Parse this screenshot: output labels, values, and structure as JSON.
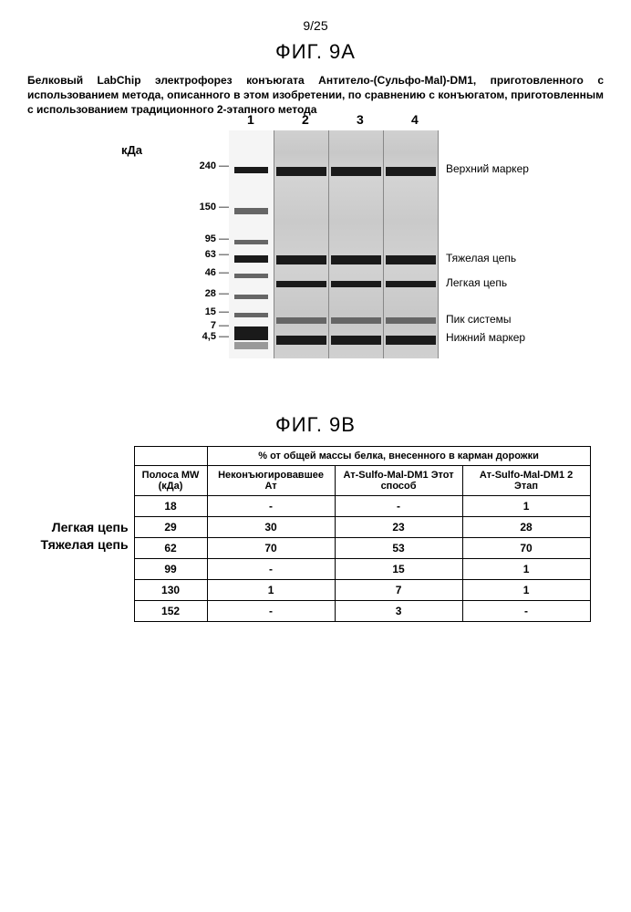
{
  "page_number": "9/25",
  "figA": {
    "title": "ФИГ. 9А",
    "caption": "Белковый LabChip электрофорез конъюгата Антитело-(Сульфо-Mal)-DM1, приготовленного с использованием метода, описанного в этом изобретении, по сравнению с конъюгатом, приготовленным с использованием традиционного 2-этапного метода",
    "kda_label": "кДа",
    "lane_numbers": [
      "1",
      "2",
      "3",
      "4"
    ],
    "mw_ticks": [
      {
        "label": "240",
        "top_pct": 16
      },
      {
        "label": "150",
        "top_pct": 34
      },
      {
        "label": "95",
        "top_pct": 48
      },
      {
        "label": "63",
        "top_pct": 55
      },
      {
        "label": "46",
        "top_pct": 63
      },
      {
        "label": "28",
        "top_pct": 72
      },
      {
        "label": "15",
        "top_pct": 80
      },
      {
        "label": "7",
        "top_pct": 86
      },
      {
        "label": "4,5",
        "top_pct": 91
      }
    ],
    "right_labels": [
      {
        "text": "Верхний маркер",
        "top_pct": 17
      },
      {
        "text": "Тяжелая цепь",
        "top_pct": 56
      },
      {
        "text": "Легкая цепь",
        "top_pct": 67
      },
      {
        "text": "Пик системы",
        "top_pct": 83
      },
      {
        "text": "Нижний маркер",
        "top_pct": 91
      }
    ],
    "lane1_bands": [
      {
        "top_pct": 16,
        "h": 3,
        "cls": ""
      },
      {
        "top_pct": 34,
        "h": 3,
        "cls": "faint"
      },
      {
        "top_pct": 48,
        "h": 2,
        "cls": "faint"
      },
      {
        "top_pct": 55,
        "h": 3,
        "cls": ""
      },
      {
        "top_pct": 63,
        "h": 2,
        "cls": "faint"
      },
      {
        "top_pct": 72,
        "h": 2,
        "cls": "faint"
      },
      {
        "top_pct": 80,
        "h": 2,
        "cls": "faint"
      },
      {
        "top_pct": 86,
        "h": 6,
        "cls": ""
      },
      {
        "top_pct": 93,
        "h": 3,
        "cls": "vfaint"
      }
    ],
    "sample_lane_bands": [
      {
        "top_pct": 16,
        "h": 4,
        "cls": ""
      },
      {
        "top_pct": 55,
        "h": 4,
        "cls": ""
      },
      {
        "top_pct": 66,
        "h": 3,
        "cls": ""
      },
      {
        "top_pct": 82,
        "h": 3,
        "cls": "faint"
      },
      {
        "top_pct": 90,
        "h": 4,
        "cls": ""
      }
    ]
  },
  "figB": {
    "title": "ФИГ. 9В",
    "header_span": "% от общей массы белка, внесенного в карман дорожки",
    "col_headers": [
      "Полоса MW (кДа)",
      "Неконъюгировавшее Ат",
      "Ат-Sulfo-Mal-DM1 Этот способ",
      "Ат-Sulfo-Mal-DM1 2 Этап"
    ],
    "side_labels": {
      "light": "Легкая цепь",
      "heavy": "Тяжелая цепь"
    },
    "rows": [
      {
        "mw": "18",
        "c1": "-",
        "c2": "-",
        "c3": "1"
      },
      {
        "mw": "29",
        "c1": "30",
        "c2": "23",
        "c3": "28"
      },
      {
        "mw": "62",
        "c1": "70",
        "c2": "53",
        "c3": "70"
      },
      {
        "mw": "99",
        "c1": "-",
        "c2": "15",
        "c3": "1"
      },
      {
        "mw": "130",
        "c1": "1",
        "c2": "7",
        "c3": "1"
      },
      {
        "mw": "152",
        "c1": "-",
        "c2": "3",
        "c3": "-"
      }
    ]
  }
}
